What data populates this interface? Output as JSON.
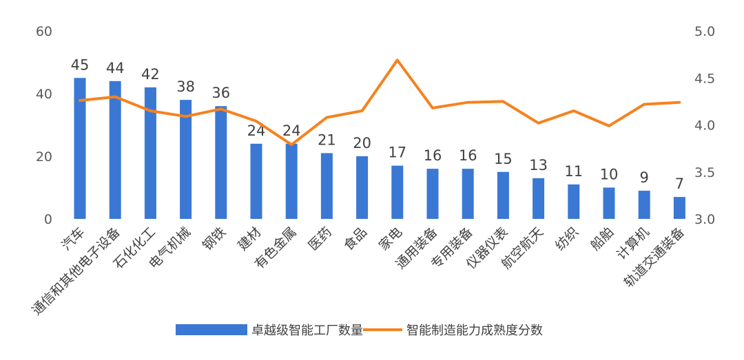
{
  "chart_data": {
    "type": "bar",
    "categories": [
      "汽车",
      "通信和其他电子设备",
      "石化化工",
      "电气机械",
      "钢铁",
      "建材",
      "有色金属",
      "医药",
      "食品",
      "家电",
      "通用装备",
      "专用装备",
      "仪器仪表",
      "航空航天",
      "纺织",
      "船舶",
      "计算机",
      "轨道交通装备"
    ],
    "series": [
      {
        "name": "卓越级智能工厂数量",
        "type": "bar",
        "axis": "left",
        "values": [
          45,
          44,
          42,
          38,
          36,
          24,
          24,
          21,
          20,
          17,
          16,
          16,
          15,
          13,
          11,
          10,
          9,
          7
        ],
        "data_labels": [
          "45",
          "44",
          "42",
          "38",
          "36",
          "24",
          "24",
          "21",
          "20",
          "17",
          "16",
          "16",
          "15",
          "13",
          "11",
          "10",
          "9",
          "7"
        ]
      },
      {
        "name": "智能制造能力成熟度分数",
        "type": "line",
        "axis": "right",
        "values": [
          4.26,
          4.3,
          4.15,
          4.09,
          4.17,
          4.04,
          3.79,
          4.08,
          4.15,
          4.69,
          4.18,
          4.24,
          4.25,
          4.02,
          4.15,
          3.99,
          4.22,
          4.24
        ]
      }
    ],
    "y_left": {
      "ticks": [
        "0",
        "20",
        "40",
        "60"
      ],
      "ylim": [
        0,
        60
      ]
    },
    "y_right": {
      "ticks": [
        "3.0",
        "3.5",
        "4.0",
        "4.5",
        "5.0"
      ],
      "ylim": [
        3.0,
        5.0
      ]
    },
    "legend": {
      "position": "bottom"
    },
    "grid": false,
    "colors": {
      "bar": "#3a78d4",
      "line": "#f5821f"
    }
  }
}
